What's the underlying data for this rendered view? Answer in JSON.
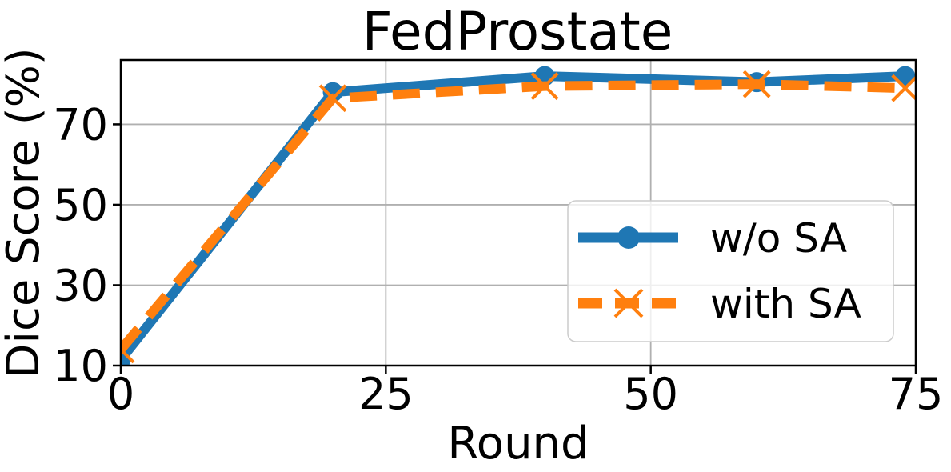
{
  "chart_data": {
    "type": "line",
    "title": "FedProstate",
    "xlabel": "Round",
    "ylabel": "Dice Score (%)",
    "xlim": [
      0,
      75
    ],
    "ylim": [
      10,
      86
    ],
    "xticks": [
      0,
      25,
      50,
      75
    ],
    "yticks": [
      10,
      30,
      50,
      70
    ],
    "grid": true,
    "grid_color": "#b0b0b0",
    "axis_color": "#000000",
    "background_color": "#ffffff",
    "legend": {
      "position": "lower-right-inside",
      "border_color": "#cccccc",
      "entries": [
        "w/o SA",
        "with SA"
      ]
    },
    "series": [
      {
        "name": "w/o SA",
        "color": "#1f77b4",
        "line_style": "solid",
        "marker": "circle",
        "x": [
          0,
          20,
          40,
          60,
          74
        ],
        "values": [
          11.5,
          78,
          82,
          80.5,
          82
        ]
      },
      {
        "name": "with SA",
        "color": "#ff7f0e",
        "line_style": "dashed",
        "marker": "x",
        "x": [
          0,
          20,
          40,
          60,
          74
        ],
        "values": [
          14,
          76.5,
          79.5,
          80,
          79
        ]
      }
    ]
  }
}
